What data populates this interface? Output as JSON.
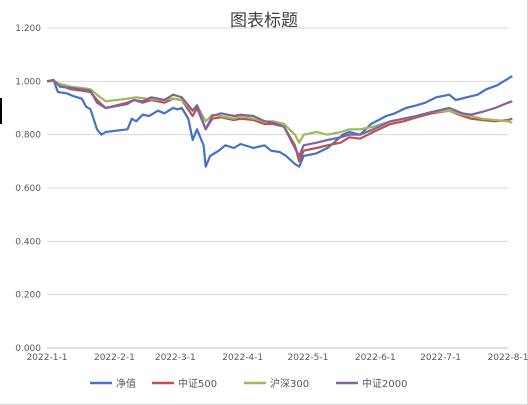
{
  "chart_data": {
    "type": "line",
    "title": "图表标题",
    "xlabel": "",
    "ylabel": "",
    "ylim": [
      0,
      1.2
    ],
    "ytick_labels": [
      "0.000",
      "0.200",
      "0.400",
      "0.600",
      "0.800",
      "1.000",
      "1.200"
    ],
    "ytick_values": [
      0,
      0.2,
      0.4,
      0.6,
      0.8,
      1.0,
      1.2
    ],
    "x_start": "2022-1-1",
    "x_end": "2022-8-1",
    "xtick_labels": [
      "2022-1-1",
      "2022-2-1",
      "2022-3-1",
      "2022-4-1",
      "2022-5-1",
      "2022-6-1",
      "2022-7-1",
      "2022-8-1"
    ],
    "xtick_values": [
      "2022-1-1",
      "2022-2-1",
      "2022-3-1",
      "2022-4-1",
      "2022-5-1",
      "2022-6-1",
      "2022-7-1",
      "2022-8-1"
    ],
    "grid": true,
    "legend_position": "bottom",
    "series": [
      {
        "name": "净值",
        "color": "#4472C4",
        "points": [
          [
            "2022-1-1",
            1.0
          ],
          [
            "2022-1-4",
            1.005
          ],
          [
            "2022-1-6",
            0.96
          ],
          [
            "2022-1-10",
            0.955
          ],
          [
            "2022-1-13",
            0.945
          ],
          [
            "2022-1-17",
            0.935
          ],
          [
            "2022-1-19",
            0.905
          ],
          [
            "2022-1-21",
            0.895
          ],
          [
            "2022-1-24",
            0.82
          ],
          [
            "2022-1-26",
            0.8
          ],
          [
            "2022-1-28",
            0.81
          ],
          [
            "2022-2-7",
            0.82
          ],
          [
            "2022-2-9",
            0.86
          ],
          [
            "2022-2-11",
            0.85
          ],
          [
            "2022-2-14",
            0.875
          ],
          [
            "2022-2-17",
            0.87
          ],
          [
            "2022-2-21",
            0.89
          ],
          [
            "2022-2-24",
            0.88
          ],
          [
            "2022-2-28",
            0.9
          ],
          [
            "2022-3-2",
            0.895
          ],
          [
            "2022-3-4",
            0.9
          ],
          [
            "2022-3-7",
            0.86
          ],
          [
            "2022-3-9",
            0.78
          ],
          [
            "2022-3-11",
            0.82
          ],
          [
            "2022-3-14",
            0.76
          ],
          [
            "2022-3-15",
            0.68
          ],
          [
            "2022-3-17",
            0.72
          ],
          [
            "2022-3-21",
            0.74
          ],
          [
            "2022-3-24",
            0.76
          ],
          [
            "2022-3-28",
            0.75
          ],
          [
            "2022-3-31",
            0.765
          ],
          [
            "2022-4-6",
            0.75
          ],
          [
            "2022-4-11",
            0.76
          ],
          [
            "2022-4-14",
            0.74
          ],
          [
            "2022-4-18",
            0.735
          ],
          [
            "2022-4-21",
            0.72
          ],
          [
            "2022-4-25",
            0.69
          ],
          [
            "2022-4-27",
            0.68
          ],
          [
            "2022-4-29",
            0.72
          ],
          [
            "2022-5-5",
            0.73
          ],
          [
            "2022-5-10",
            0.75
          ],
          [
            "2022-5-13",
            0.77
          ],
          [
            "2022-5-17",
            0.8
          ],
          [
            "2022-5-20",
            0.81
          ],
          [
            "2022-5-25",
            0.8
          ],
          [
            "2022-5-30",
            0.84
          ],
          [
            "2022-6-6",
            0.87
          ],
          [
            "2022-6-10",
            0.88
          ],
          [
            "2022-6-15",
            0.9
          ],
          [
            "2022-6-20",
            0.91
          ],
          [
            "2022-6-24",
            0.92
          ],
          [
            "2022-6-29",
            0.94
          ],
          [
            "2022-7-5",
            0.95
          ],
          [
            "2022-7-8",
            0.93
          ],
          [
            "2022-7-13",
            0.94
          ],
          [
            "2022-7-18",
            0.95
          ],
          [
            "2022-7-22",
            0.97
          ],
          [
            "2022-7-27",
            0.985
          ],
          [
            "2022-8-1",
            1.01
          ],
          [
            "2022-8-3",
            1.02
          ]
        ]
      },
      {
        "name": "中证500",
        "color": "#C0504D",
        "points": [
          [
            "2022-1-1",
            1.0
          ],
          [
            "2022-1-4",
            1.002
          ],
          [
            "2022-1-7",
            0.985
          ],
          [
            "2022-1-12",
            0.97
          ],
          [
            "2022-1-17",
            0.965
          ],
          [
            "2022-1-21",
            0.96
          ],
          [
            "2022-1-24",
            0.93
          ],
          [
            "2022-1-28",
            0.9
          ],
          [
            "2022-2-7",
            0.92
          ],
          [
            "2022-2-10",
            0.93
          ],
          [
            "2022-2-14",
            0.92
          ],
          [
            "2022-2-18",
            0.93
          ],
          [
            "2022-2-24",
            0.92
          ],
          [
            "2022-2-28",
            0.935
          ],
          [
            "2022-3-4",
            0.93
          ],
          [
            "2022-3-9",
            0.87
          ],
          [
            "2022-3-11",
            0.9
          ],
          [
            "2022-3-15",
            0.82
          ],
          [
            "2022-3-18",
            0.86
          ],
          [
            "2022-3-22",
            0.865
          ],
          [
            "2022-3-28",
            0.855
          ],
          [
            "2022-3-31",
            0.86
          ],
          [
            "2022-4-6",
            0.855
          ],
          [
            "2022-4-11",
            0.84
          ],
          [
            "2022-4-15",
            0.84
          ],
          [
            "2022-4-20",
            0.83
          ],
          [
            "2022-4-25",
            0.76
          ],
          [
            "2022-4-27",
            0.7
          ],
          [
            "2022-4-29",
            0.74
          ],
          [
            "2022-5-5",
            0.75
          ],
          [
            "2022-5-10",
            0.76
          ],
          [
            "2022-5-16",
            0.77
          ],
          [
            "2022-5-20",
            0.79
          ],
          [
            "2022-5-25",
            0.785
          ],
          [
            "2022-5-31",
            0.81
          ],
          [
            "2022-6-8",
            0.84
          ],
          [
            "2022-6-14",
            0.85
          ],
          [
            "2022-6-20",
            0.865
          ],
          [
            "2022-6-27",
            0.88
          ],
          [
            "2022-7-5",
            0.89
          ],
          [
            "2022-7-11",
            0.87
          ],
          [
            "2022-7-15",
            0.86
          ],
          [
            "2022-7-20",
            0.855
          ],
          [
            "2022-7-26",
            0.85
          ],
          [
            "2022-8-1",
            0.855
          ],
          [
            "2022-8-3",
            0.86
          ]
        ]
      },
      {
        "name": "沪深300",
        "color": "#9BBB59",
        "points": [
          [
            "2022-1-1",
            1.0
          ],
          [
            "2022-1-4",
            1.0
          ],
          [
            "2022-1-7",
            0.99
          ],
          [
            "2022-1-12",
            0.98
          ],
          [
            "2022-1-17",
            0.975
          ],
          [
            "2022-1-21",
            0.97
          ],
          [
            "2022-1-24",
            0.95
          ],
          [
            "2022-1-28",
            0.925
          ],
          [
            "2022-2-7",
            0.935
          ],
          [
            "2022-2-11",
            0.94
          ],
          [
            "2022-2-16",
            0.935
          ],
          [
            "2022-2-22",
            0.93
          ],
          [
            "2022-2-28",
            0.935
          ],
          [
            "2022-3-4",
            0.93
          ],
          [
            "2022-3-9",
            0.89
          ],
          [
            "2022-3-11",
            0.91
          ],
          [
            "2022-3-15",
            0.85
          ],
          [
            "2022-3-18",
            0.875
          ],
          [
            "2022-3-22",
            0.87
          ],
          [
            "2022-3-28",
            0.86
          ],
          [
            "2022-3-31",
            0.87
          ],
          [
            "2022-4-6",
            0.86
          ],
          [
            "2022-4-11",
            0.85
          ],
          [
            "2022-4-15",
            0.85
          ],
          [
            "2022-4-20",
            0.84
          ],
          [
            "2022-4-25",
            0.8
          ],
          [
            "2022-4-27",
            0.77
          ],
          [
            "2022-4-29",
            0.8
          ],
          [
            "2022-5-5",
            0.81
          ],
          [
            "2022-5-10",
            0.8
          ],
          [
            "2022-5-16",
            0.81
          ],
          [
            "2022-5-20",
            0.82
          ],
          [
            "2022-5-25",
            0.82
          ],
          [
            "2022-5-31",
            0.83
          ],
          [
            "2022-6-8",
            0.85
          ],
          [
            "2022-6-14",
            0.86
          ],
          [
            "2022-6-20",
            0.87
          ],
          [
            "2022-6-27",
            0.885
          ],
          [
            "2022-7-5",
            0.89
          ],
          [
            "2022-7-11",
            0.875
          ],
          [
            "2022-7-15",
            0.87
          ],
          [
            "2022-7-20",
            0.86
          ],
          [
            "2022-7-26",
            0.855
          ],
          [
            "2022-8-1",
            0.85
          ],
          [
            "2022-8-3",
            0.845
          ]
        ]
      },
      {
        "name": "中证2000",
        "color": "#8064A2",
        "points": [
          [
            "2022-1-1",
            1.0
          ],
          [
            "2022-1-4",
            1.005
          ],
          [
            "2022-1-7",
            0.98
          ],
          [
            "2022-1-12",
            0.975
          ],
          [
            "2022-1-17",
            0.97
          ],
          [
            "2022-1-21",
            0.965
          ],
          [
            "2022-1-24",
            0.92
          ],
          [
            "2022-1-28",
            0.9
          ],
          [
            "2022-2-7",
            0.915
          ],
          [
            "2022-2-10",
            0.93
          ],
          [
            "2022-2-14",
            0.925
          ],
          [
            "2022-2-18",
            0.94
          ],
          [
            "2022-2-24",
            0.93
          ],
          [
            "2022-2-28",
            0.95
          ],
          [
            "2022-3-4",
            0.94
          ],
          [
            "2022-3-9",
            0.89
          ],
          [
            "2022-3-11",
            0.91
          ],
          [
            "2022-3-15",
            0.82
          ],
          [
            "2022-3-18",
            0.87
          ],
          [
            "2022-3-22",
            0.88
          ],
          [
            "2022-3-28",
            0.87
          ],
          [
            "2022-3-31",
            0.875
          ],
          [
            "2022-4-6",
            0.87
          ],
          [
            "2022-4-11",
            0.85
          ],
          [
            "2022-4-15",
            0.845
          ],
          [
            "2022-4-20",
            0.83
          ],
          [
            "2022-4-25",
            0.75
          ],
          [
            "2022-4-27",
            0.72
          ],
          [
            "2022-4-29",
            0.76
          ],
          [
            "2022-5-5",
            0.77
          ],
          [
            "2022-5-10",
            0.78
          ],
          [
            "2022-5-16",
            0.79
          ],
          [
            "2022-5-20",
            0.8
          ],
          [
            "2022-5-25",
            0.8
          ],
          [
            "2022-5-31",
            0.82
          ],
          [
            "2022-6-8",
            0.85
          ],
          [
            "2022-6-14",
            0.86
          ],
          [
            "2022-6-20",
            0.87
          ],
          [
            "2022-6-27",
            0.885
          ],
          [
            "2022-7-5",
            0.9
          ],
          [
            "2022-7-11",
            0.88
          ],
          [
            "2022-7-15",
            0.875
          ],
          [
            "2022-7-20",
            0.885
          ],
          [
            "2022-7-26",
            0.9
          ],
          [
            "2022-8-1",
            0.92
          ],
          [
            "2022-8-3",
            0.925
          ]
        ]
      }
    ]
  }
}
